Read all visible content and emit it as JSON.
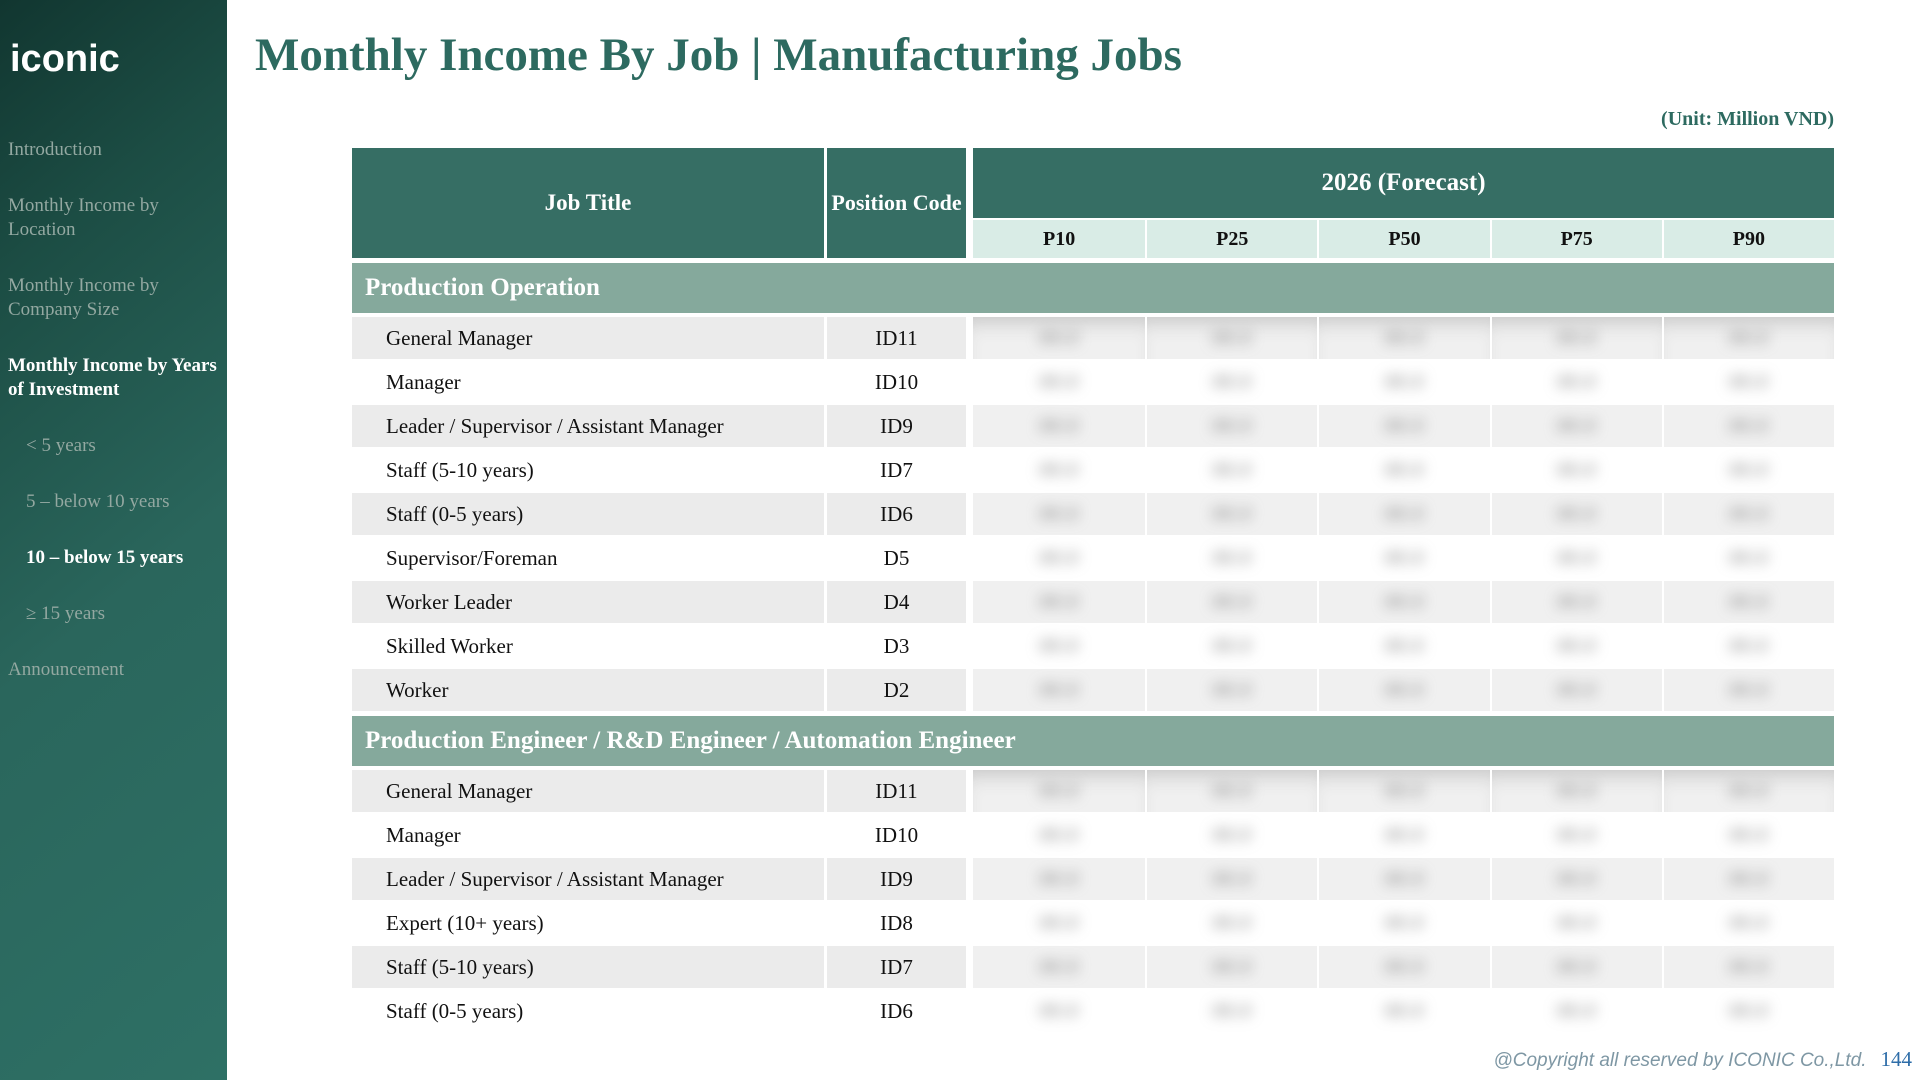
{
  "sidebar": {
    "logo": "iconic",
    "items": [
      {
        "label": "Introduction",
        "active": false,
        "indent": false
      },
      {
        "label": "Monthly Income by Location",
        "active": false,
        "indent": false
      },
      {
        "label": "Monthly Income by Company Size",
        "active": false,
        "indent": false
      },
      {
        "label": "Monthly Income by Years of Investment",
        "active": true,
        "indent": false
      },
      {
        "label": "< 5 years",
        "active": false,
        "indent": true
      },
      {
        "label": "5 – below 10 years",
        "active": false,
        "indent": true
      },
      {
        "label": "10 – below 15 years",
        "active": true,
        "indent": true
      },
      {
        "label": "≥ 15 years",
        "active": false,
        "indent": true
      },
      {
        "label": "Announcement",
        "active": false,
        "indent": false
      }
    ]
  },
  "header": {
    "title": "Monthly Income By Job | Manufacturing Jobs",
    "unit_note": "(Unit: Million VND)"
  },
  "table": {
    "col_job": "Job Title",
    "col_code": "Position Code",
    "col_year": "2026 (Forecast)",
    "percentiles": [
      "P10",
      "P25",
      "P50",
      "P75",
      "P90"
    ],
    "values_redacted": true,
    "value_placeholder": "##.#",
    "sections": [
      {
        "name": "Production Operation",
        "rows": [
          {
            "title": "General Manager",
            "code": "ID11"
          },
          {
            "title": "Manager",
            "code": "ID10"
          },
          {
            "title": "Leader / Supervisor / Assistant Manager",
            "code": "ID9"
          },
          {
            "title": "Staff (5-10 years)",
            "code": "ID7"
          },
          {
            "title": "Staff (0-5 years)",
            "code": "ID6"
          },
          {
            "title": "Supervisor/Foreman",
            "code": "D5"
          },
          {
            "title": "Worker Leader",
            "code": "D4"
          },
          {
            "title": "Skilled Worker",
            "code": "D3"
          },
          {
            "title": "Worker",
            "code": "D2"
          }
        ]
      },
      {
        "name": "Production Engineer / R&D Engineer / Automation Engineer",
        "rows": [
          {
            "title": "General Manager",
            "code": "ID11"
          },
          {
            "title": "Manager",
            "code": "ID10"
          },
          {
            "title": "Leader / Supervisor / Assistant Manager",
            "code": "ID9"
          },
          {
            "title": "Expert (10+ years)",
            "code": "ID8"
          },
          {
            "title": "Staff (5-10 years)",
            "code": "ID7"
          },
          {
            "title": "Staff (0-5 years)",
            "code": "ID6"
          }
        ]
      }
    ]
  },
  "footer": {
    "copyright": "@Copyright all reserved by ICONIC Co.,Ltd.",
    "page": "144"
  },
  "colors": {
    "header_teal": "#366e64",
    "section_sage": "#85a99c",
    "percentile_mint": "#d9ece6",
    "title_teal": "#2d6a60",
    "row_alt_gray": "#ebebeb",
    "page_num_blue": "#2e6da8",
    "sidebar_dark": "#113630",
    "sidebar_light": "#2e7065"
  }
}
